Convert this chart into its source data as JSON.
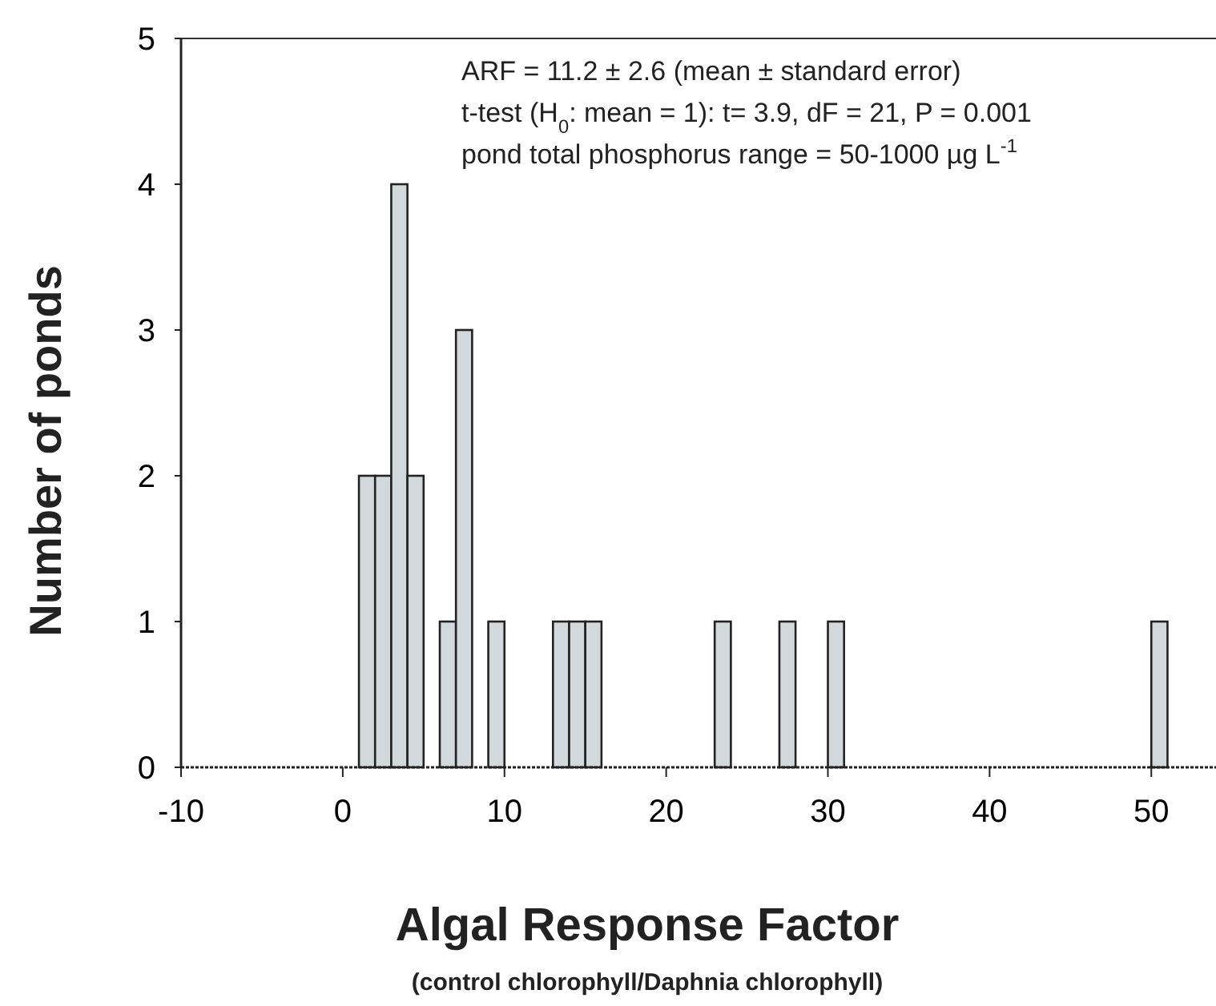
{
  "chart_data": {
    "type": "histogram",
    "xlabel": "Algal Response Factor",
    "ylabel": "Number of ponds",
    "bins": [
      1,
      2,
      3,
      4,
      5,
      6,
      7,
      8,
      9,
      10,
      11,
      12,
      13,
      14,
      15,
      16,
      17,
      18,
      19,
      20,
      21,
      22,
      23,
      24,
      25,
      26,
      27,
      28,
      29,
      30,
      31,
      32,
      33,
      34,
      35,
      36,
      37,
      38,
      39,
      40,
      41,
      42,
      43,
      44,
      45,
      46,
      47,
      48,
      49,
      50,
      51
    ],
    "values": [
      2,
      2,
      4,
      2,
      0,
      1,
      3,
      0,
      1,
      0,
      0,
      0,
      1,
      1,
      1,
      0,
      0,
      0,
      0,
      0,
      0,
      0,
      1,
      0,
      0,
      0,
      1,
      0,
      0,
      1,
      0,
      0,
      0,
      0,
      0,
      0,
      0,
      0,
      0,
      0,
      0,
      0,
      0,
      0,
      0,
      0,
      0,
      0,
      0,
      1
    ],
    "color": "#d2d9dc",
    "xlim": [
      -10,
      54
    ],
    "xticks": [
      -10,
      0,
      10,
      20,
      30,
      40,
      50
    ],
    "ylim": [
      0,
      5
    ],
    "yticks": [
      0,
      1,
      2,
      3,
      4,
      5
    ],
    "grid": false,
    "annotations": [
      "ARF = 11.2 ± 2.6 (mean ± standard error)",
      "t-test (H$_{0}$: mean = 1): t= 3.9, dF = 21, P = 0.001",
      "pond total phosphorus range = 50-1000 µg L$^{-1}$",
      "(control chlorophyll/Daphnia chlorophyll)"
    ]
  }
}
